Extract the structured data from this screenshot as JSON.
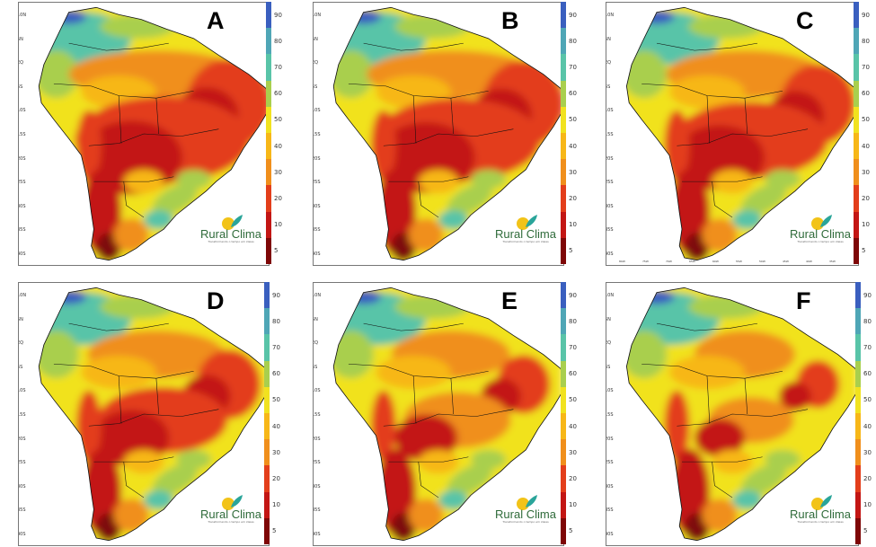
{
  "logo": {
    "name": "Rural Clima",
    "tagline": "Transformando o tempo em ideias"
  },
  "colorbar": {
    "labels": [
      "90",
      "80",
      "70",
      "60",
      "50",
      "40",
      "30",
      "20",
      "10",
      "5"
    ],
    "colors": [
      "#3a5fbf",
      "#4fa6b6",
      "#59c4a8",
      "#a9cf4e",
      "#f1e21f",
      "#f7b718",
      "#f08f1c",
      "#e33e1b",
      "#c31614",
      "#7e0707"
    ]
  },
  "lat_ticks": [
    "10N",
    "5N",
    "EQ",
    "5S",
    "10S",
    "15S",
    "20S",
    "25S",
    "30S",
    "35S",
    "40S"
  ],
  "lon_ticks": [
    "80W",
    "75W",
    "70W",
    "65W",
    "60W",
    "55W",
    "50W",
    "45W",
    "40W",
    "35W"
  ],
  "panels": [
    {
      "id": "a",
      "letter": "A"
    },
    {
      "id": "b",
      "letter": "B"
    },
    {
      "id": "c",
      "letter": "C"
    },
    {
      "id": "d",
      "letter": "D"
    },
    {
      "id": "e",
      "letter": "E"
    },
    {
      "id": "f",
      "letter": "F"
    }
  ]
}
